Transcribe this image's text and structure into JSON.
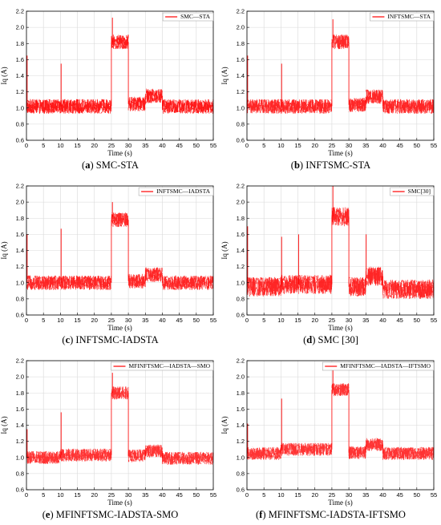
{
  "colors": {
    "series": "#ff0000",
    "grid": "#d9d9d9",
    "axis": "#000000"
  },
  "chart_data": [
    {
      "type": "line",
      "panel_label": "(a)",
      "caption": "SMC-STA",
      "legend": "SMC—STA",
      "xlabel": "Time (s)",
      "ylabel": "Iq (A)",
      "xlim": [
        0,
        55
      ],
      "ylim": [
        0.6,
        2.2
      ],
      "xticks": [
        "0",
        "5",
        "10",
        "15",
        "20",
        "25",
        "30",
        "35",
        "40",
        "45",
        "50",
        "55"
      ],
      "yticks": [
        "0.6",
        "0.8",
        "1.0",
        "1.2",
        "1.4",
        "1.6",
        "1.8",
        "2.0",
        "2.2"
      ],
      "grid": true,
      "legend_position": "top-right",
      "noise": 0.09,
      "fill_density": 0.9,
      "segments": [
        {
          "x0": 0,
          "x1": 10,
          "y": 1.02
        },
        {
          "x0": 10,
          "x1": 25,
          "y": 1.02
        },
        {
          "x0": 25,
          "x1": 30,
          "y": 1.82
        },
        {
          "x0": 30,
          "x1": 35,
          "y": 1.05
        },
        {
          "x0": 35,
          "x1": 40,
          "y": 1.15
        },
        {
          "x0": 40,
          "x1": 55,
          "y": 1.02
        }
      ],
      "spikes": [
        {
          "x": 0.2,
          "y": 1.65
        },
        {
          "x": 10.2,
          "y": 1.55
        },
        {
          "x": 25.3,
          "y": 2.12
        }
      ]
    },
    {
      "type": "line",
      "panel_label": "(b)",
      "caption": "INFTSMC-STA",
      "legend": "INFTSMC—STA",
      "xlabel": "Time (s)",
      "ylabel": "Iq (A)",
      "xlim": [
        0,
        55
      ],
      "ylim": [
        0.6,
        2.2
      ],
      "xticks": [
        "0",
        "5",
        "10",
        "15",
        "20",
        "25",
        "30",
        "35",
        "40",
        "45",
        "50",
        "55"
      ],
      "yticks": [
        "0.6",
        "0.8",
        "1.0",
        "1.2",
        "1.4",
        "1.6",
        "1.8",
        "2.0",
        "2.2"
      ],
      "grid": true,
      "legend_position": "top-right",
      "noise": 0.09,
      "fill_density": 0.85,
      "segments": [
        {
          "x0": 0,
          "x1": 10,
          "y": 1.02
        },
        {
          "x0": 10,
          "x1": 25,
          "y": 1.02
        },
        {
          "x0": 25,
          "x1": 30,
          "y": 1.82
        },
        {
          "x0": 30,
          "x1": 35,
          "y": 1.04
        },
        {
          "x0": 35,
          "x1": 40,
          "y": 1.14
        },
        {
          "x0": 40,
          "x1": 55,
          "y": 1.02
        }
      ],
      "spikes": [
        {
          "x": 0.2,
          "y": 1.65
        },
        {
          "x": 10.2,
          "y": 1.55
        },
        {
          "x": 25.3,
          "y": 2.1
        }
      ]
    },
    {
      "type": "line",
      "panel_label": "(c)",
      "caption": "INFTSMC-IADSTA",
      "legend": "INFTSMC—IADSTA",
      "xlabel": "Time (s)",
      "ylabel": "Iq (A)",
      "xlim": [
        0,
        55
      ],
      "ylim": [
        0.6,
        2.2
      ],
      "xticks": [
        "0",
        "5",
        "10",
        "15",
        "20",
        "25",
        "30",
        "35",
        "40",
        "45",
        "50",
        "55"
      ],
      "yticks": [
        "0.6",
        "0.8",
        "1.0",
        "1.2",
        "1.4",
        "1.6",
        "1.8",
        "2.0",
        "2.2"
      ],
      "grid": true,
      "legend_position": "top-right",
      "noise": 0.09,
      "fill_density": 0.85,
      "segments": [
        {
          "x0": 0,
          "x1": 10,
          "y": 1.0
        },
        {
          "x0": 10,
          "x1": 25,
          "y": 1.0
        },
        {
          "x0": 25,
          "x1": 30,
          "y": 1.78
        },
        {
          "x0": 30,
          "x1": 35,
          "y": 1.02
        },
        {
          "x0": 35,
          "x1": 40,
          "y": 1.1
        },
        {
          "x0": 40,
          "x1": 55,
          "y": 1.0
        }
      ],
      "spikes": [
        {
          "x": 0.2,
          "y": 1.6
        },
        {
          "x": 10.2,
          "y": 1.67
        },
        {
          "x": 25.3,
          "y": 2.0
        }
      ]
    },
    {
      "type": "line",
      "panel_label": "(d)",
      "caption": "SMC [30]",
      "legend": "SMC[30]",
      "xlabel": "Time (s)",
      "ylabel": "Iq (A)",
      "xlim": [
        0,
        55
      ],
      "ylim": [
        0.6,
        2.2
      ],
      "xticks": [
        "0",
        "5",
        "10",
        "15",
        "20",
        "25",
        "30",
        "35",
        "40",
        "45",
        "50",
        "55"
      ],
      "yticks": [
        "0.6",
        "0.8",
        "1.0",
        "1.2",
        "1.4",
        "1.6",
        "1.8",
        "2.0",
        "2.2"
      ],
      "grid": true,
      "legend_position": "top-right",
      "noise": 0.12,
      "fill_density": 0.85,
      "segments": [
        {
          "x0": 0,
          "x1": 10,
          "y": 0.95
        },
        {
          "x0": 10,
          "x1": 25,
          "y": 0.98
        },
        {
          "x0": 25,
          "x1": 30,
          "y": 1.82
        },
        {
          "x0": 30,
          "x1": 35,
          "y": 0.95
        },
        {
          "x0": 35,
          "x1": 40,
          "y": 1.08
        },
        {
          "x0": 40,
          "x1": 55,
          "y": 0.92
        }
      ],
      "spikes": [
        {
          "x": 0.2,
          "y": 1.7
        },
        {
          "x": 10.2,
          "y": 1.57
        },
        {
          "x": 25.3,
          "y": 2.2
        },
        {
          "x": 15.2,
          "y": 1.6
        },
        {
          "x": 35.1,
          "y": 1.6
        }
      ]
    },
    {
      "type": "line",
      "panel_label": "(e)",
      "caption": "MFINFTSMC-IADSTA-SMO",
      "legend": "MFINFTSMC—IADSTA—SMO",
      "xlabel": "Time (s)",
      "ylabel": "Iq (A)",
      "xlim": [
        0,
        55
      ],
      "ylim": [
        0.6,
        2.2
      ],
      "xticks": [
        "0",
        "5",
        "10",
        "15",
        "20",
        "25",
        "30",
        "35",
        "40",
        "45",
        "50",
        "55"
      ],
      "yticks": [
        "0.6",
        "0.8",
        "1.0",
        "1.2",
        "1.4",
        "1.6",
        "1.8",
        "2.0",
        "2.2"
      ],
      "grid": true,
      "legend_position": "top-right",
      "noise": 0.08,
      "fill_density": 0.8,
      "segments": [
        {
          "x0": 0,
          "x1": 10,
          "y": 1.0
        },
        {
          "x0": 10,
          "x1": 25,
          "y": 1.03
        },
        {
          "x0": 25,
          "x1": 30,
          "y": 1.8
        },
        {
          "x0": 30,
          "x1": 35,
          "y": 1.02
        },
        {
          "x0": 35,
          "x1": 40,
          "y": 1.08
        },
        {
          "x0": 40,
          "x1": 55,
          "y": 0.99
        }
      ],
      "spikes": [
        {
          "x": 0.2,
          "y": 1.35
        },
        {
          "x": 10.2,
          "y": 1.56
        },
        {
          "x": 25.3,
          "y": 2.05
        }
      ]
    },
    {
      "type": "line",
      "panel_label": "(f)",
      "caption": "MFINFTSMC-IADSTA-IFTSMO",
      "legend": "MFINFTSMC—IADSTA—IFTSMO",
      "xlabel": "Time (s)",
      "ylabel": "Iq (A)",
      "xlim": [
        0,
        55
      ],
      "ylim": [
        0.6,
        2.2
      ],
      "xticks": [
        "0",
        "5",
        "10",
        "15",
        "20",
        "25",
        "30",
        "35",
        "40",
        "45",
        "50",
        "55"
      ],
      "yticks": [
        "0.6",
        "0.8",
        "1.0",
        "1.2",
        "1.4",
        "1.6",
        "1.8",
        "2.0",
        "2.2"
      ],
      "grid": true,
      "legend_position": "top-right",
      "noise": 0.08,
      "fill_density": 0.8,
      "segments": [
        {
          "x0": 0,
          "x1": 10,
          "y": 1.05
        },
        {
          "x0": 10,
          "x1": 25,
          "y": 1.1
        },
        {
          "x0": 25,
          "x1": 30,
          "y": 1.84
        },
        {
          "x0": 30,
          "x1": 35,
          "y": 1.06
        },
        {
          "x0": 35,
          "x1": 40,
          "y": 1.16
        },
        {
          "x0": 40,
          "x1": 55,
          "y": 1.05
        }
      ],
      "spikes": [
        {
          "x": 0.2,
          "y": 1.42
        },
        {
          "x": 10.2,
          "y": 1.73
        },
        {
          "x": 25.3,
          "y": 2.1
        }
      ]
    }
  ]
}
